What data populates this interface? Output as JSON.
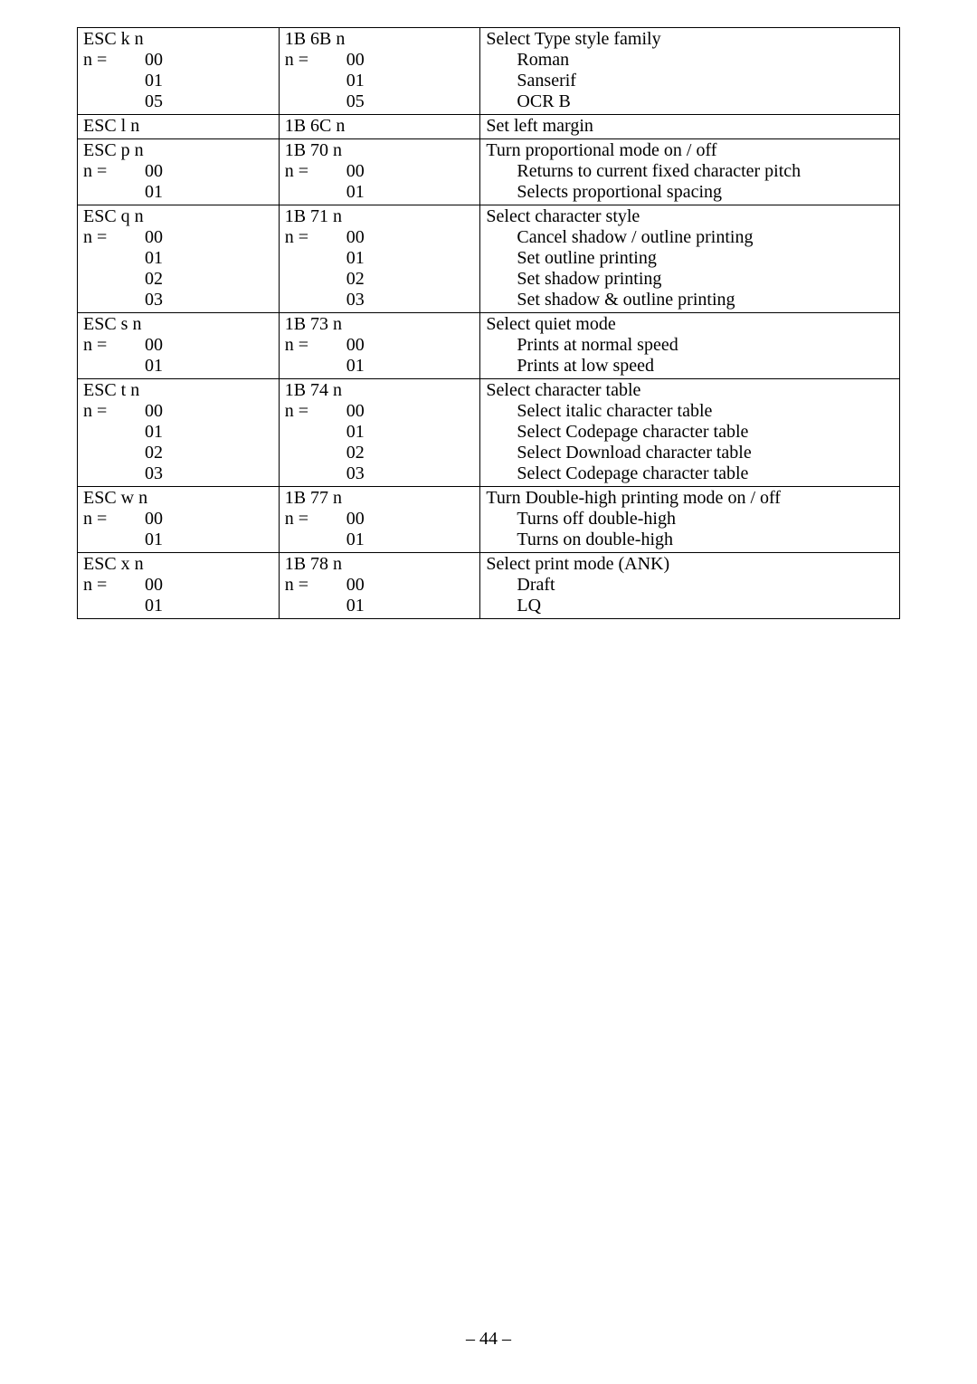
{
  "page_number": "– 44 –",
  "rows": [
    {
      "cmd_head": "ESC k n",
      "hex_head": "1B 6B n",
      "desc_head": "Select Type style family",
      "opts": [
        {
          "k": "n =",
          "v": "00",
          "hk": "n =",
          "hv": "00",
          "d": "Roman"
        },
        {
          "k": "",
          "v": "01",
          "hk": "",
          "hv": "01",
          "d": "Sanserif"
        },
        {
          "k": "",
          "v": "05",
          "hk": "",
          "hv": "05",
          "d": "OCR B"
        }
      ]
    },
    {
      "cmd_head": "ESC l n",
      "hex_head": "1B 6C n",
      "desc_head": "Set left margin",
      "opts": []
    },
    {
      "cmd_head": "ESC p n",
      "hex_head": "1B 70 n",
      "desc_head": "Turn proportional mode on / off",
      "opts": [
        {
          "k": "n =",
          "v": "00",
          "hk": "n =",
          "hv": "00",
          "d": "Returns to current fixed character pitch"
        },
        {
          "k": "",
          "v": "01",
          "hk": "",
          "hv": "01",
          "d": "Selects proportional spacing"
        }
      ]
    },
    {
      "cmd_head": "ESC q n",
      "hex_head": "1B 71 n",
      "desc_head": "Select character style",
      "opts": [
        {
          "k": "n =",
          "v": "00",
          "hk": "n =",
          "hv": "00",
          "d": "Cancel shadow / outline printing"
        },
        {
          "k": "",
          "v": "01",
          "hk": "",
          "hv": "01",
          "d": "Set outline printing"
        },
        {
          "k": "",
          "v": "02",
          "hk": "",
          "hv": "02",
          "d": "Set shadow printing"
        },
        {
          "k": "",
          "v": "03",
          "hk": "",
          "hv": "03",
          "d": "Set shadow & outline printing"
        }
      ]
    },
    {
      "cmd_head": "ESC s n",
      "hex_head": "1B 73 n",
      "desc_head": "Select quiet mode",
      "opts": [
        {
          "k": "n =",
          "v": "00",
          "hk": "n =",
          "hv": "00",
          "d": "Prints at normal speed"
        },
        {
          "k": "",
          "v": "01",
          "hk": "",
          "hv": "01",
          "d": "Prints at low speed"
        }
      ]
    },
    {
      "cmd_head": "ESC t n",
      "hex_head": "1B 74 n",
      "desc_head": "Select character table",
      "opts": [
        {
          "k": "n =",
          "v": "00",
          "hk": "n =",
          "hv": "00",
          "d": "Select italic character table"
        },
        {
          "k": "",
          "v": "01",
          "hk": "",
          "hv": "01",
          "d": "Select Codepage character table"
        },
        {
          "k": "",
          "v": "02",
          "hk": "",
          "hv": "02",
          "d": "Select Download character table"
        },
        {
          "k": "",
          "v": "03",
          "hk": "",
          "hv": "03",
          "d": "Select Codepage character table"
        }
      ]
    },
    {
      "cmd_head": "ESC w n",
      "hex_head": "1B 77 n",
      "desc_head": "Turn Double-high printing mode on / off",
      "opts": [
        {
          "k": "n =",
          "v": "00",
          "hk": "n =",
          "hv": "00",
          "d": "Turns off double-high"
        },
        {
          "k": "",
          "v": "01",
          "hk": "",
          "hv": "01",
          "d": "Turns on double-high"
        }
      ]
    },
    {
      "cmd_head": "ESC x n",
      "hex_head": "1B 78 n",
      "desc_head": "Select print mode (ANK)",
      "opts": [
        {
          "k": "n =",
          "v": "00",
          "hk": "n =",
          "hv": "00",
          "d": "Draft"
        },
        {
          "k": "",
          "v": "01",
          "hk": "",
          "hv": "01",
          "d": "LQ"
        }
      ]
    }
  ]
}
